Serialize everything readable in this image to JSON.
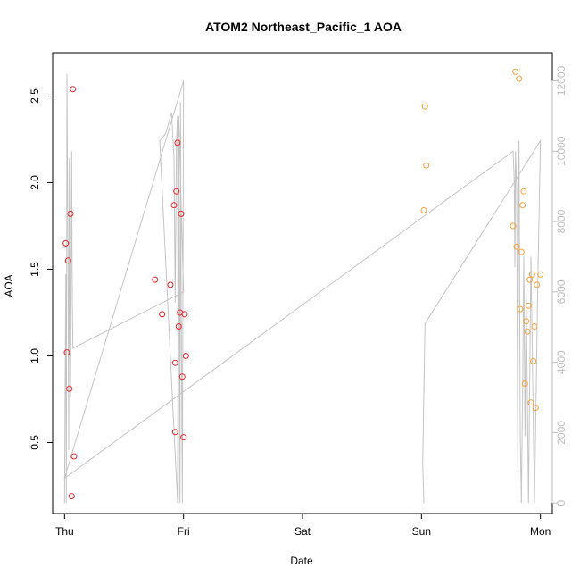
{
  "chart_data": {
    "type": "scatter",
    "title": "ATOM2 Northeast_Pacific_1 AOA",
    "xlabel": "Date",
    "ylabel": "AOA",
    "x_ticks": [
      "Thu",
      "Fri",
      "Sat",
      "Sun",
      "Mon"
    ],
    "x_range_days": [
      -0.1,
      4.1
    ],
    "ylim": [
      0.09,
      2.75
    ],
    "y_ticks": [
      0.5,
      1.0,
      1.5,
      2.0,
      2.5
    ],
    "y2lim": [
      -300,
      12800
    ],
    "y2_ticks": [
      0,
      2000,
      4000,
      6000,
      8000,
      10000,
      12000
    ],
    "grid": false,
    "legend": "none",
    "colors": {
      "red": "#e8262a",
      "orange": "#f5a23c",
      "gray": "#c4c4c4",
      "axis": "#000000",
      "axis2": "#bdbdbd"
    },
    "series": [
      {
        "color": "red",
        "points": [
          [
            0.01,
            1.65
          ],
          [
            0.02,
            1.02
          ],
          [
            0.03,
            1.55
          ],
          [
            0.04,
            0.81
          ],
          [
            0.05,
            1.82
          ],
          [
            0.06,
            0.19
          ],
          [
            0.07,
            2.54
          ],
          [
            0.08,
            0.42
          ],
          [
            0.76,
            1.44
          ],
          [
            0.82,
            1.24
          ],
          [
            0.89,
            1.41
          ],
          [
            0.92,
            1.87
          ],
          [
            0.93,
            0.96
          ],
          [
            0.94,
            1.95
          ],
          [
            0.95,
            2.23
          ],
          [
            0.96,
            1.17
          ],
          [
            0.97,
            1.25
          ],
          [
            0.98,
            1.82
          ],
          [
            0.99,
            0.88
          ],
          [
            1.0,
            0.53
          ],
          [
            1.01,
            1.24
          ],
          [
            1.02,
            1.0
          ],
          [
            0.93,
            0.56
          ]
        ]
      },
      {
        "color": "orange",
        "points": [
          [
            3.02,
            1.84
          ],
          [
            3.03,
            2.44
          ],
          [
            3.04,
            2.1
          ],
          [
            3.77,
            1.75
          ],
          [
            3.79,
            2.64
          ],
          [
            3.8,
            1.63
          ],
          [
            3.82,
            2.6
          ],
          [
            3.83,
            1.27
          ],
          [
            3.84,
            1.6
          ],
          [
            3.85,
            1.87
          ],
          [
            3.86,
            1.95
          ],
          [
            3.87,
            0.84
          ],
          [
            3.88,
            1.2
          ],
          [
            3.89,
            1.14
          ],
          [
            3.9,
            1.29
          ],
          [
            3.91,
            1.44
          ],
          [
            3.92,
            0.73
          ],
          [
            3.93,
            1.47
          ],
          [
            3.94,
            0.97
          ],
          [
            3.95,
            1.17
          ],
          [
            3.96,
            0.7
          ],
          [
            3.97,
            1.41
          ],
          [
            4.0,
            1.47
          ]
        ]
      },
      {
        "color": "gray",
        "axis": "secondary",
        "line": [
          [
            0.0,
            0.0
          ],
          [
            0.01,
            6500
          ],
          [
            0.015,
            0.0
          ],
          [
            0.02,
            12200
          ],
          [
            0.03,
            6500
          ],
          [
            0.035,
            1500
          ],
          [
            0.04,
            9800
          ],
          [
            0.045,
            4500
          ],
          [
            0.05,
            3000
          ],
          [
            0.06,
            10000
          ],
          [
            0.065,
            5700
          ],
          [
            0.07,
            4400
          ],
          [
            1.0,
            6000
          ],
          [
            0.96,
            11000
          ],
          [
            0.955,
            0.0
          ],
          [
            0.95,
            11000
          ],
          [
            0.94,
            10200
          ],
          [
            0.93,
            5700
          ],
          [
            0.92,
            9800
          ],
          [
            0.9,
            11100
          ],
          [
            0.85,
            10500
          ],
          [
            0.8,
            10300
          ],
          [
            0.95,
            0.0
          ],
          [
            0.96,
            10900
          ],
          [
            0.97,
            0.0
          ],
          [
            0.975,
            11400
          ],
          [
            0.98,
            6000
          ],
          [
            0.99,
            0.0
          ],
          [
            1.0,
            12000
          ],
          [
            0.0,
            700
          ],
          [
            3.77,
            10000
          ],
          [
            3.78,
            9200
          ],
          [
            3.785,
            6700
          ],
          [
            3.79,
            10000
          ],
          [
            3.8,
            8900
          ],
          [
            3.81,
            1000
          ],
          [
            3.815,
            8800
          ],
          [
            3.82,
            10300
          ],
          [
            3.83,
            2000
          ],
          [
            3.84,
            0.0
          ],
          [
            3.85,
            3200
          ],
          [
            3.86,
            7000
          ],
          [
            3.87,
            1900
          ],
          [
            3.88,
            6000
          ],
          [
            3.9,
            0.0
          ],
          [
            3.92,
            7000
          ],
          [
            3.95,
            0.0
          ],
          [
            3.98,
            6700
          ],
          [
            4.0,
            10300
          ],
          [
            3.03,
            5100
          ],
          [
            3.01,
            1100
          ],
          [
            3.02,
            0.0
          ]
        ]
      }
    ]
  }
}
